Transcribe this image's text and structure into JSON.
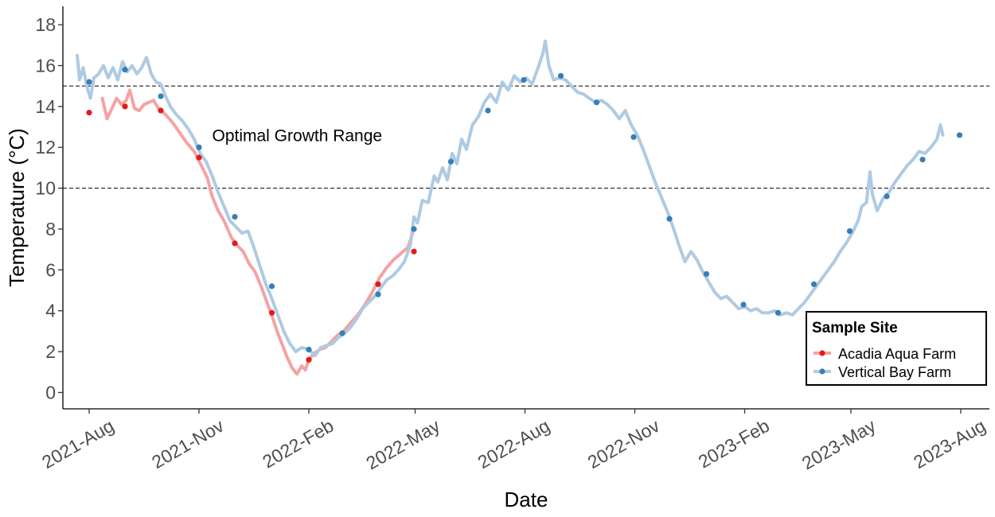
{
  "chart_data": {
    "type": "line",
    "xlabel": "Date",
    "ylabel": "Temperature (°C)",
    "ylim": [
      -0.8,
      18.9
    ],
    "xlim": [
      "2021-07-10",
      "2023-08-25"
    ],
    "y_ticks": [
      0,
      2,
      4,
      6,
      8,
      10,
      12,
      14,
      16,
      18
    ],
    "x_ticks": [
      {
        "date": "2021-08-01",
        "label": "2021-Aug"
      },
      {
        "date": "2021-11-01",
        "label": "2021-Nov"
      },
      {
        "date": "2022-02-01",
        "label": "2022-Feb"
      },
      {
        "date": "2022-05-01",
        "label": "2022-May"
      },
      {
        "date": "2022-08-01",
        "label": "2022-Aug"
      },
      {
        "date": "2022-11-01",
        "label": "2022-Nov"
      },
      {
        "date": "2023-02-01",
        "label": "2023-Feb"
      },
      {
        "date": "2023-05-01",
        "label": "2023-May"
      },
      {
        "date": "2023-08-01",
        "label": "2023-Aug"
      }
    ],
    "grid": false,
    "legend": {
      "title": "Sample Site",
      "position": "bottom-right"
    },
    "reference_lines": [
      {
        "y": 15,
        "style": "dashed"
      },
      {
        "y": 10,
        "style": "dashed"
      }
    ],
    "annotation": {
      "text": "Optimal Growth Range",
      "x": "2021-11-12",
      "y": 12.3
    },
    "series": [
      {
        "name": "Acadia Aqua Farm",
        "line_color": "#f4a3a3",
        "point_color": "#e41a1c",
        "line": [
          [
            "2021-08-12",
            14.4
          ],
          [
            "2021-08-16",
            13.4
          ],
          [
            "2021-08-20",
            13.9
          ],
          [
            "2021-08-24",
            14.4
          ],
          [
            "2021-08-28",
            14.1
          ],
          [
            "2021-09-01",
            14.3
          ],
          [
            "2021-09-04",
            14.8
          ],
          [
            "2021-09-08",
            13.9
          ],
          [
            "2021-09-12",
            13.8
          ],
          [
            "2021-09-16",
            14.1
          ],
          [
            "2021-09-20",
            14.2
          ],
          [
            "2021-09-24",
            14.3
          ],
          [
            "2021-09-28",
            13.9
          ],
          [
            "2021-10-04",
            13.6
          ],
          [
            "2021-10-10",
            13.2
          ],
          [
            "2021-10-16",
            12.7
          ],
          [
            "2021-10-22",
            12.2
          ],
          [
            "2021-10-28",
            11.8
          ],
          [
            "2021-11-03",
            11.1
          ],
          [
            "2021-11-08",
            10.5
          ],
          [
            "2021-11-12",
            9.6
          ],
          [
            "2021-11-17",
            8.9
          ],
          [
            "2021-11-22",
            8.4
          ],
          [
            "2021-11-28",
            7.6
          ],
          [
            "2021-12-03",
            7.2
          ],
          [
            "2021-12-08",
            6.9
          ],
          [
            "2021-12-13",
            6.3
          ],
          [
            "2021-12-18",
            5.9
          ],
          [
            "2021-12-23",
            5.2
          ],
          [
            "2021-12-28",
            4.4
          ],
          [
            "2022-01-02",
            3.6
          ],
          [
            "2022-01-06",
            2.9
          ],
          [
            "2022-01-10",
            2.3
          ],
          [
            "2022-01-14",
            1.7
          ],
          [
            "2022-01-18",
            1.2
          ],
          [
            "2022-01-22",
            0.9
          ],
          [
            "2022-01-26",
            1.3
          ],
          [
            "2022-01-29",
            1.1
          ],
          [
            "2022-02-01",
            1.6
          ],
          [
            "2022-02-05",
            1.9
          ],
          [
            "2022-02-10",
            2.1
          ],
          [
            "2022-02-15",
            2.2
          ],
          [
            "2022-02-20",
            2.5
          ],
          [
            "2022-02-25",
            2.8
          ],
          [
            "2022-03-02",
            3.0
          ],
          [
            "2022-03-08",
            3.4
          ],
          [
            "2022-03-14",
            3.8
          ],
          [
            "2022-03-20",
            4.3
          ],
          [
            "2022-03-26",
            4.9
          ],
          [
            "2022-04-01",
            5.6
          ],
          [
            "2022-04-07",
            6.1
          ],
          [
            "2022-04-13",
            6.5
          ],
          [
            "2022-04-19",
            6.8
          ],
          [
            "2022-04-25",
            7.1
          ],
          [
            "2022-04-29",
            7.8
          ]
        ],
        "points": [
          [
            "2021-08-01",
            13.7
          ],
          [
            "2021-08-31",
            14.0
          ],
          [
            "2021-09-30",
            13.8
          ],
          [
            "2021-11-01",
            11.5
          ],
          [
            "2021-12-01",
            7.3
          ],
          [
            "2022-01-01",
            3.9
          ],
          [
            "2022-02-01",
            1.6
          ],
          [
            "2022-03-31",
            5.3
          ],
          [
            "2022-04-30",
            6.9
          ]
        ]
      },
      {
        "name": "Vertical Bay Farm",
        "line_color": "#afcae3",
        "point_color": "#377eb8",
        "line": [
          [
            "2021-07-22",
            16.5
          ],
          [
            "2021-07-24",
            15.3
          ],
          [
            "2021-07-27",
            15.9
          ],
          [
            "2021-07-30",
            15.0
          ],
          [
            "2021-08-02",
            14.4
          ],
          [
            "2021-08-05",
            15.4
          ],
          [
            "2021-08-09",
            15.6
          ],
          [
            "2021-08-13",
            16.0
          ],
          [
            "2021-08-17",
            15.4
          ],
          [
            "2021-08-21",
            15.9
          ],
          [
            "2021-08-25",
            15.3
          ],
          [
            "2021-08-29",
            16.2
          ],
          [
            "2021-09-02",
            15.7
          ],
          [
            "2021-09-06",
            16.0
          ],
          [
            "2021-09-10",
            15.6
          ],
          [
            "2021-09-14",
            15.9
          ],
          [
            "2021-09-18",
            16.4
          ],
          [
            "2021-09-22",
            15.6
          ],
          [
            "2021-09-26",
            15.2
          ],
          [
            "2021-09-30",
            15.1
          ],
          [
            "2021-10-04",
            14.5
          ],
          [
            "2021-10-08",
            14.0
          ],
          [
            "2021-10-13",
            13.6
          ],
          [
            "2021-10-18",
            13.3
          ],
          [
            "2021-10-23",
            12.9
          ],
          [
            "2021-10-28",
            12.4
          ],
          [
            "2021-11-02",
            11.7
          ],
          [
            "2021-11-07",
            11.3
          ],
          [
            "2021-11-12",
            10.6
          ],
          [
            "2021-11-17",
            9.8
          ],
          [
            "2021-11-22",
            9.1
          ],
          [
            "2021-11-27",
            8.4
          ],
          [
            "2021-12-02",
            8.1
          ],
          [
            "2021-12-07",
            7.8
          ],
          [
            "2021-12-12",
            7.9
          ],
          [
            "2021-12-17",
            7.1
          ],
          [
            "2021-12-22",
            6.2
          ],
          [
            "2021-12-27",
            5.3
          ],
          [
            "2022-01-01",
            4.6
          ],
          [
            "2022-01-06",
            3.8
          ],
          [
            "2022-01-11",
            3.0
          ],
          [
            "2022-01-16",
            2.4
          ],
          [
            "2022-01-21",
            2.0
          ],
          [
            "2022-01-26",
            2.2
          ],
          [
            "2022-02-01",
            2.1
          ],
          [
            "2022-02-06",
            1.8
          ],
          [
            "2022-02-11",
            2.2
          ],
          [
            "2022-02-16",
            2.3
          ],
          [
            "2022-02-21",
            2.4
          ],
          [
            "2022-02-26",
            2.7
          ],
          [
            "2022-03-03",
            2.9
          ],
          [
            "2022-03-08",
            3.2
          ],
          [
            "2022-03-13",
            3.6
          ],
          [
            "2022-03-18",
            4.1
          ],
          [
            "2022-03-23",
            4.4
          ],
          [
            "2022-03-28",
            4.7
          ],
          [
            "2022-04-02",
            5.1
          ],
          [
            "2022-04-07",
            5.5
          ],
          [
            "2022-04-12",
            5.7
          ],
          [
            "2022-04-17",
            6.0
          ],
          [
            "2022-04-22",
            6.4
          ],
          [
            "2022-04-27",
            7.2
          ],
          [
            "2022-04-30",
            8.6
          ],
          [
            "2022-05-03",
            8.3
          ],
          [
            "2022-05-07",
            9.4
          ],
          [
            "2022-05-12",
            9.3
          ],
          [
            "2022-05-17",
            10.6
          ],
          [
            "2022-05-20",
            10.3
          ],
          [
            "2022-05-24",
            11.0
          ],
          [
            "2022-05-28",
            10.4
          ],
          [
            "2022-06-01",
            11.7
          ],
          [
            "2022-06-05",
            11.2
          ],
          [
            "2022-06-09",
            12.4
          ],
          [
            "2022-06-13",
            11.9
          ],
          [
            "2022-06-18",
            13.1
          ],
          [
            "2022-06-23",
            13.5
          ],
          [
            "2022-06-28",
            14.2
          ],
          [
            "2022-07-03",
            14.6
          ],
          [
            "2022-07-08",
            14.2
          ],
          [
            "2022-07-13",
            15.2
          ],
          [
            "2022-07-18",
            14.8
          ],
          [
            "2022-07-23",
            15.5
          ],
          [
            "2022-07-28",
            15.2
          ],
          [
            "2022-08-02",
            15.4
          ],
          [
            "2022-08-07",
            15.1
          ],
          [
            "2022-08-12",
            15.9
          ],
          [
            "2022-08-16",
            16.6
          ],
          [
            "2022-08-18",
            17.2
          ],
          [
            "2022-08-21",
            16.0
          ],
          [
            "2022-08-25",
            15.3
          ],
          [
            "2022-08-30",
            15.4
          ],
          [
            "2022-09-04",
            15.3
          ],
          [
            "2022-09-09",
            15.0
          ],
          [
            "2022-09-14",
            14.7
          ],
          [
            "2022-09-19",
            14.6
          ],
          [
            "2022-09-24",
            14.4
          ],
          [
            "2022-09-29",
            14.2
          ],
          [
            "2022-10-04",
            14.3
          ],
          [
            "2022-10-09",
            14.1
          ],
          [
            "2022-10-14",
            13.8
          ],
          [
            "2022-10-19",
            13.4
          ],
          [
            "2022-10-24",
            13.8
          ],
          [
            "2022-10-29",
            13.1
          ],
          [
            "2022-11-03",
            12.6
          ],
          [
            "2022-11-08",
            11.9
          ],
          [
            "2022-11-13",
            11.1
          ],
          [
            "2022-11-18",
            10.3
          ],
          [
            "2022-11-23",
            9.6
          ],
          [
            "2022-11-28",
            8.9
          ],
          [
            "2022-12-03",
            8.1
          ],
          [
            "2022-12-08",
            7.2
          ],
          [
            "2022-12-13",
            6.4
          ],
          [
            "2022-12-18",
            6.9
          ],
          [
            "2022-12-23",
            6.5
          ],
          [
            "2022-12-28",
            5.9
          ],
          [
            "2023-01-02",
            5.4
          ],
          [
            "2023-01-07",
            4.9
          ],
          [
            "2023-01-12",
            4.6
          ],
          [
            "2023-01-17",
            4.7
          ],
          [
            "2023-01-22",
            4.4
          ],
          [
            "2023-01-27",
            4.1
          ],
          [
            "2023-02-01",
            4.2
          ],
          [
            "2023-02-06",
            4.0
          ],
          [
            "2023-02-11",
            4.1
          ],
          [
            "2023-02-16",
            3.9
          ],
          [
            "2023-02-21",
            3.9
          ],
          [
            "2023-02-26",
            4.0
          ],
          [
            "2023-03-03",
            3.8
          ],
          [
            "2023-03-08",
            3.9
          ],
          [
            "2023-03-13",
            3.8
          ],
          [
            "2023-03-18",
            4.1
          ],
          [
            "2023-03-23",
            4.4
          ],
          [
            "2023-03-28",
            4.8
          ],
          [
            "2023-04-02",
            5.2
          ],
          [
            "2023-04-07",
            5.6
          ],
          [
            "2023-04-12",
            6.0
          ],
          [
            "2023-04-17",
            6.4
          ],
          [
            "2023-04-22",
            6.9
          ],
          [
            "2023-04-27",
            7.3
          ],
          [
            "2023-05-02",
            7.8
          ],
          [
            "2023-05-07",
            8.4
          ],
          [
            "2023-05-10",
            9.1
          ],
          [
            "2023-05-14",
            9.3
          ],
          [
            "2023-05-17",
            10.8
          ],
          [
            "2023-05-19",
            9.7
          ],
          [
            "2023-05-23",
            8.9
          ],
          [
            "2023-05-28",
            9.5
          ],
          [
            "2023-06-02",
            9.8
          ],
          [
            "2023-06-07",
            10.3
          ],
          [
            "2023-06-12",
            10.7
          ],
          [
            "2023-06-17",
            11.1
          ],
          [
            "2023-06-22",
            11.4
          ],
          [
            "2023-06-27",
            11.8
          ],
          [
            "2023-07-02",
            11.7
          ],
          [
            "2023-07-07",
            12.0
          ],
          [
            "2023-07-12",
            12.4
          ],
          [
            "2023-07-15",
            13.1
          ],
          [
            "2023-07-17",
            12.6
          ]
        ],
        "points": [
          [
            "2021-08-01",
            15.2
          ],
          [
            "2021-08-31",
            15.8
          ],
          [
            "2021-09-30",
            14.5
          ],
          [
            "2021-11-01",
            12.0
          ],
          [
            "2021-12-01",
            8.6
          ],
          [
            "2022-01-01",
            5.2
          ],
          [
            "2022-02-01",
            2.1
          ],
          [
            "2022-03-01",
            2.9
          ],
          [
            "2022-03-31",
            4.8
          ],
          [
            "2022-04-30",
            8.0
          ],
          [
            "2022-05-31",
            11.3
          ],
          [
            "2022-07-01",
            13.8
          ],
          [
            "2022-07-31",
            15.3
          ],
          [
            "2022-08-31",
            15.5
          ],
          [
            "2022-09-30",
            14.2
          ],
          [
            "2022-10-31",
            12.5
          ],
          [
            "2022-11-30",
            8.5
          ],
          [
            "2022-12-31",
            5.8
          ],
          [
            "2023-01-31",
            4.3
          ],
          [
            "2023-03-01",
            3.9
          ],
          [
            "2023-03-31",
            5.3
          ],
          [
            "2023-04-30",
            7.9
          ],
          [
            "2023-05-31",
            9.6
          ],
          [
            "2023-06-30",
            11.4
          ],
          [
            "2023-07-31",
            12.6
          ]
        ]
      }
    ]
  }
}
